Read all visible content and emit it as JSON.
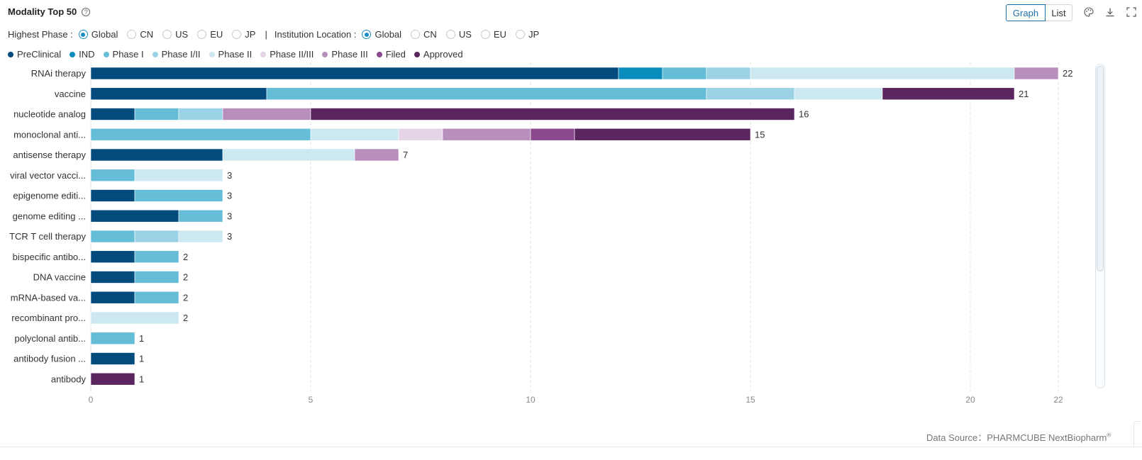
{
  "header": {
    "title": "Modality Top 50",
    "help_icon": "question-circle-icon"
  },
  "view_toggle": {
    "graph": "Graph",
    "list": "List",
    "selected": "Graph"
  },
  "toolbar": {
    "icons": [
      "palette-icon",
      "download-icon",
      "fullscreen-icon"
    ]
  },
  "filters": {
    "highest_phase": {
      "label": "Highest Phase :",
      "options": [
        "Global",
        "CN",
        "US",
        "EU",
        "JP"
      ],
      "selected": "Global"
    },
    "separator": "|",
    "institution_location": {
      "label": "Institution Location :",
      "options": [
        "Global",
        "CN",
        "US",
        "EU",
        "JP"
      ],
      "selected": "Global"
    }
  },
  "chart_data": {
    "type": "bar",
    "orientation": "horizontal",
    "stacked": true,
    "categories": [
      "RNAi therapy",
      "vaccine",
      "nucleotide analog",
      "monoclonal anti...",
      "antisense therapy",
      "viral vector vacci...",
      "epigenome editi...",
      "genome editing ...",
      "TCR T cell therapy",
      "bispecific antibo...",
      "DNA vaccine",
      "mRNA-based va...",
      "recombinant pro...",
      "polyclonal antib...",
      "antibody fusion ...",
      "antibody"
    ],
    "series": [
      {
        "name": "PreClinical",
        "color": "#034b7d",
        "values": [
          12,
          4,
          1,
          0,
          3,
          0,
          1,
          2,
          0,
          1,
          1,
          1,
          0,
          0,
          1,
          0
        ]
      },
      {
        "name": "IND",
        "color": "#0a8dbd",
        "values": [
          1,
          0,
          0,
          0,
          0,
          0,
          0,
          0,
          0,
          0,
          0,
          0,
          0,
          0,
          0,
          0
        ]
      },
      {
        "name": "Phase I",
        "color": "#65bdd7",
        "values": [
          1,
          10,
          1,
          5,
          0,
          1,
          2,
          1,
          1,
          1,
          1,
          1,
          0,
          1,
          0,
          0
        ]
      },
      {
        "name": "Phase I/II",
        "color": "#9bd2e5",
        "values": [
          1,
          2,
          1,
          0,
          0,
          0,
          0,
          0,
          1,
          0,
          0,
          0,
          0,
          0,
          0,
          0
        ]
      },
      {
        "name": "Phase II",
        "color": "#cce8f1",
        "values": [
          6,
          2,
          0,
          2,
          3,
          2,
          0,
          0,
          1,
          0,
          0,
          0,
          2,
          0,
          0,
          0
        ]
      },
      {
        "name": "Phase II/III",
        "color": "#e5d3e6",
        "values": [
          0,
          0,
          0,
          1,
          0,
          0,
          0,
          0,
          0,
          0,
          0,
          0,
          0,
          0,
          0,
          0
        ]
      },
      {
        "name": "Phase III",
        "color": "#b88fbc",
        "values": [
          1,
          0,
          2,
          2,
          1,
          0,
          0,
          0,
          0,
          0,
          0,
          0,
          0,
          0,
          0,
          0
        ]
      },
      {
        "name": "Filed",
        "color": "#8a4a8d",
        "values": [
          0,
          0,
          0,
          1,
          0,
          0,
          0,
          0,
          0,
          0,
          0,
          0,
          0,
          0,
          0,
          0
        ]
      },
      {
        "name": "Approved",
        "color": "#5b2660",
        "values": [
          0,
          3,
          11,
          4,
          0,
          0,
          0,
          0,
          0,
          0,
          0,
          0,
          0,
          0,
          0,
          1
        ]
      }
    ],
    "totals": [
      22,
      21,
      16,
      15,
      7,
      3,
      3,
      3,
      3,
      2,
      2,
      2,
      2,
      1,
      1,
      1
    ],
    "x_ticks": [
      0,
      5,
      10,
      15,
      20,
      22
    ],
    "xlim": [
      0,
      22
    ],
    "grid": "vertical-dashed",
    "legend_placement": "top-left"
  },
  "footer": {
    "label": "Data Source：",
    "source": "PHARMCUBE NextBiopharm",
    "mark": "®"
  }
}
